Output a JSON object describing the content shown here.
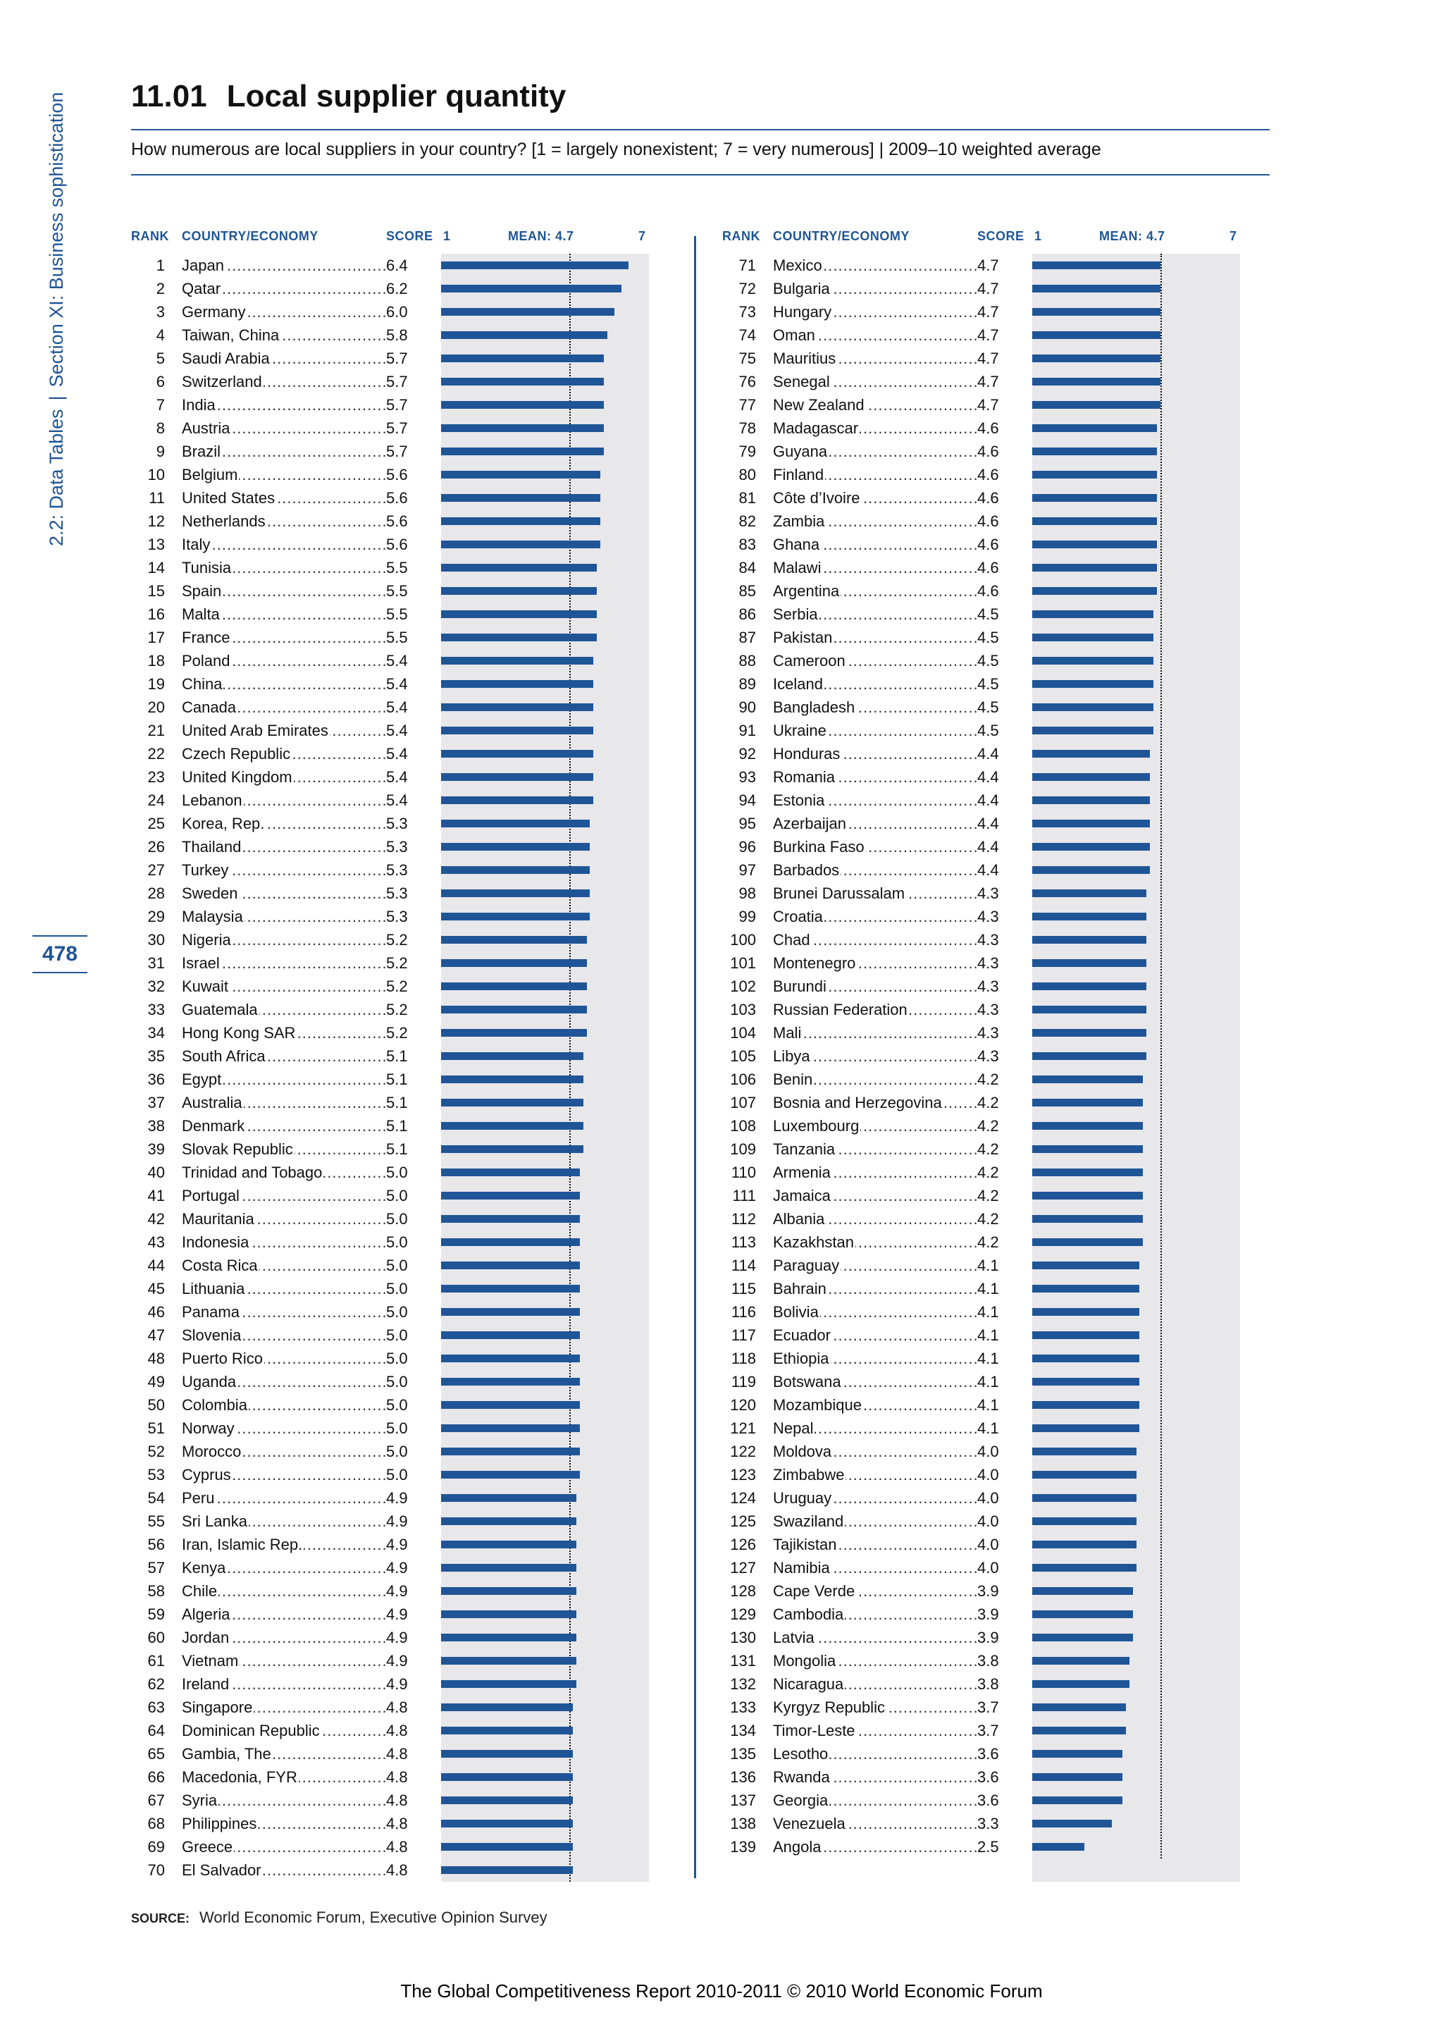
{
  "side": {
    "section_a": "2.2: Data Tables",
    "separator": "|",
    "section_b": "Section XI: Business sophistication"
  },
  "page_number": "478",
  "title": {
    "number": "11.01",
    "text": "Local supplier quantity"
  },
  "subtitle": "How numerous are local suppliers in your country? [1 = largely nonexistent; 7 = very numerous]  |  2009–10 weighted average",
  "headers": {
    "rank": "RANK",
    "country": "COUNTRY/ECONOMY",
    "score": "SCORE",
    "min": "1",
    "mean": "MEAN: 4.7",
    "max": "7"
  },
  "scale": {
    "min": 1,
    "max": 7,
    "mean": 4.7
  },
  "rows": [
    [
      "1",
      "Japan",
      "6.4"
    ],
    [
      "2",
      "Qatar",
      "6.2"
    ],
    [
      "3",
      "Germany",
      "6.0"
    ],
    [
      "4",
      "Taiwan, China",
      "5.8"
    ],
    [
      "5",
      "Saudi Arabia",
      "5.7"
    ],
    [
      "6",
      "Switzerland",
      "5.7"
    ],
    [
      "7",
      "India",
      "5.7"
    ],
    [
      "8",
      "Austria",
      "5.7"
    ],
    [
      "9",
      "Brazil",
      "5.7"
    ],
    [
      "10",
      "Belgium",
      "5.6"
    ],
    [
      "11",
      "United States",
      "5.6"
    ],
    [
      "12",
      "Netherlands",
      "5.6"
    ],
    [
      "13",
      "Italy",
      "5.6"
    ],
    [
      "14",
      "Tunisia",
      "5.5"
    ],
    [
      "15",
      "Spain",
      "5.5"
    ],
    [
      "16",
      "Malta",
      "5.5"
    ],
    [
      "17",
      "France",
      "5.5"
    ],
    [
      "18",
      "Poland",
      "5.4"
    ],
    [
      "19",
      "China",
      "5.4"
    ],
    [
      "20",
      "Canada",
      "5.4"
    ],
    [
      "21",
      "United Arab Emirates",
      "5.4"
    ],
    [
      "22",
      "Czech Republic",
      "5.4"
    ],
    [
      "23",
      "United Kingdom",
      "5.4"
    ],
    [
      "24",
      "Lebanon",
      "5.4"
    ],
    [
      "25",
      "Korea, Rep.",
      "5.3"
    ],
    [
      "26",
      "Thailand",
      "5.3"
    ],
    [
      "27",
      "Turkey",
      "5.3"
    ],
    [
      "28",
      "Sweden",
      "5.3"
    ],
    [
      "29",
      "Malaysia",
      "5.3"
    ],
    [
      "30",
      "Nigeria",
      "5.2"
    ],
    [
      "31",
      "Israel",
      "5.2"
    ],
    [
      "32",
      "Kuwait",
      "5.2"
    ],
    [
      "33",
      "Guatemala",
      "5.2"
    ],
    [
      "34",
      "Hong Kong SAR",
      "5.2"
    ],
    [
      "35",
      "South Africa",
      "5.1"
    ],
    [
      "36",
      "Egypt",
      "5.1"
    ],
    [
      "37",
      "Australia",
      "5.1"
    ],
    [
      "38",
      "Denmark",
      "5.1"
    ],
    [
      "39",
      "Slovak Republic",
      "5.1"
    ],
    [
      "40",
      "Trinidad and Tobago",
      "5.0"
    ],
    [
      "41",
      "Portugal",
      "5.0"
    ],
    [
      "42",
      "Mauritania",
      "5.0"
    ],
    [
      "43",
      "Indonesia",
      "5.0"
    ],
    [
      "44",
      "Costa Rica",
      "5.0"
    ],
    [
      "45",
      "Lithuania",
      "5.0"
    ],
    [
      "46",
      "Panama",
      "5.0"
    ],
    [
      "47",
      "Slovenia",
      "5.0"
    ],
    [
      "48",
      "Puerto Rico",
      "5.0"
    ],
    [
      "49",
      "Uganda",
      "5.0"
    ],
    [
      "50",
      "Colombia",
      "5.0"
    ],
    [
      "51",
      "Norway",
      "5.0"
    ],
    [
      "52",
      "Morocco",
      "5.0"
    ],
    [
      "53",
      "Cyprus",
      "5.0"
    ],
    [
      "54",
      "Peru",
      "4.9"
    ],
    [
      "55",
      "Sri Lanka",
      "4.9"
    ],
    [
      "56",
      "Iran, Islamic Rep.",
      "4.9"
    ],
    [
      "57",
      "Kenya",
      "4.9"
    ],
    [
      "58",
      "Chile",
      "4.9"
    ],
    [
      "59",
      "Algeria",
      "4.9"
    ],
    [
      "60",
      "Jordan",
      "4.9"
    ],
    [
      "61",
      "Vietnam",
      "4.9"
    ],
    [
      "62",
      "Ireland",
      "4.9"
    ],
    [
      "63",
      "Singapore",
      "4.8"
    ],
    [
      "64",
      "Dominican Republic",
      "4.8"
    ],
    [
      "65",
      "Gambia, The",
      "4.8"
    ],
    [
      "66",
      "Macedonia, FYR",
      "4.8"
    ],
    [
      "67",
      "Syria",
      "4.8"
    ],
    [
      "68",
      "Philippines",
      "4.8"
    ],
    [
      "69",
      "Greece",
      "4.8"
    ],
    [
      "70",
      "El Salvador",
      "4.8"
    ],
    [
      "71",
      "Mexico",
      "4.7"
    ],
    [
      "72",
      "Bulgaria",
      "4.7"
    ],
    [
      "73",
      "Hungary",
      "4.7"
    ],
    [
      "74",
      "Oman",
      "4.7"
    ],
    [
      "75",
      "Mauritius",
      "4.7"
    ],
    [
      "76",
      "Senegal",
      "4.7"
    ],
    [
      "77",
      "New Zealand",
      "4.7"
    ],
    [
      "78",
      "Madagascar",
      "4.6"
    ],
    [
      "79",
      "Guyana",
      "4.6"
    ],
    [
      "80",
      "Finland",
      "4.6"
    ],
    [
      "81",
      "Côte d’Ivoire",
      "4.6"
    ],
    [
      "82",
      "Zambia",
      "4.6"
    ],
    [
      "83",
      "Ghana",
      "4.6"
    ],
    [
      "84",
      "Malawi",
      "4.6"
    ],
    [
      "85",
      "Argentina",
      "4.6"
    ],
    [
      "86",
      "Serbia",
      "4.5"
    ],
    [
      "87",
      "Pakistan",
      "4.5"
    ],
    [
      "88",
      "Cameroon",
      "4.5"
    ],
    [
      "89",
      "Iceland",
      "4.5"
    ],
    [
      "90",
      "Bangladesh",
      "4.5"
    ],
    [
      "91",
      "Ukraine",
      "4.5"
    ],
    [
      "92",
      "Honduras",
      "4.4"
    ],
    [
      "93",
      "Romania",
      "4.4"
    ],
    [
      "94",
      "Estonia",
      "4.4"
    ],
    [
      "95",
      "Azerbaijan",
      "4.4"
    ],
    [
      "96",
      "Burkina Faso",
      "4.4"
    ],
    [
      "97",
      "Barbados",
      "4.4"
    ],
    [
      "98",
      "Brunei Darussalam",
      "4.3"
    ],
    [
      "99",
      "Croatia",
      "4.3"
    ],
    [
      "100",
      "Chad",
      "4.3"
    ],
    [
      "101",
      "Montenegro",
      "4.3"
    ],
    [
      "102",
      "Burundi",
      "4.3"
    ],
    [
      "103",
      "Russian Federation",
      "4.3"
    ],
    [
      "104",
      "Mali",
      "4.3"
    ],
    [
      "105",
      "Libya",
      "4.3"
    ],
    [
      "106",
      "Benin",
      "4.2"
    ],
    [
      "107",
      "Bosnia and Herzegovina",
      "4.2"
    ],
    [
      "108",
      "Luxembourg",
      "4.2"
    ],
    [
      "109",
      "Tanzania",
      "4.2"
    ],
    [
      "110",
      "Armenia",
      "4.2"
    ],
    [
      "111",
      "Jamaica",
      "4.2"
    ],
    [
      "112",
      "Albania",
      "4.2"
    ],
    [
      "113",
      "Kazakhstan",
      "4.2"
    ],
    [
      "114",
      "Paraguay",
      "4.1"
    ],
    [
      "115",
      "Bahrain",
      "4.1"
    ],
    [
      "116",
      "Bolivia",
      "4.1"
    ],
    [
      "117",
      "Ecuador",
      "4.1"
    ],
    [
      "118",
      "Ethiopia",
      "4.1"
    ],
    [
      "119",
      "Botswana",
      "4.1"
    ],
    [
      "120",
      "Mozambique",
      "4.1"
    ],
    [
      "121",
      "Nepal",
      "4.1"
    ],
    [
      "122",
      "Moldova",
      "4.0"
    ],
    [
      "123",
      "Zimbabwe",
      "4.0"
    ],
    [
      "124",
      "Uruguay",
      "4.0"
    ],
    [
      "125",
      "Swaziland",
      "4.0"
    ],
    [
      "126",
      "Tajikistan",
      "4.0"
    ],
    [
      "127",
      "Namibia",
      "4.0"
    ],
    [
      "128",
      "Cape Verde",
      "3.9"
    ],
    [
      "129",
      "Cambodia",
      "3.9"
    ],
    [
      "130",
      "Latvia",
      "3.9"
    ],
    [
      "131",
      "Mongolia",
      "3.8"
    ],
    [
      "132",
      "Nicaragua",
      "3.8"
    ],
    [
      "133",
      "Kyrgyz Republic",
      "3.7"
    ],
    [
      "134",
      "Timor-Leste",
      "3.7"
    ],
    [
      "135",
      "Lesotho",
      "3.6"
    ],
    [
      "136",
      "Rwanda",
      "3.6"
    ],
    [
      "137",
      "Georgia",
      "3.6"
    ],
    [
      "138",
      "Venezuela",
      "3.3"
    ],
    [
      "139",
      "Angola",
      "2.5"
    ]
  ],
  "source": {
    "label": "SOURCE:",
    "text": "World Economic Forum, Executive Opinion Survey"
  },
  "footer": "The Global Competitiveness Report 2010-2011 © 2010 World Economic Forum"
}
